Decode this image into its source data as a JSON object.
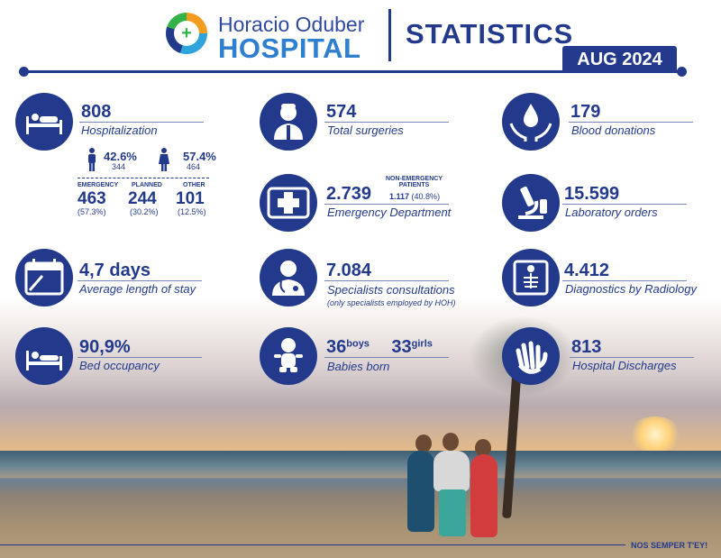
{
  "header": {
    "brand_line1": "Horacio Oduber",
    "brand_line2": "HOSPITAL",
    "title": "STATISTICS",
    "period": "AUG 2024"
  },
  "stats": {
    "hospitalization": {
      "value": "808",
      "label": "Hospitalization",
      "icon": "hospital-bed-icon",
      "male_pct": "42.6%",
      "male_count": "344",
      "female_pct": "57.4%",
      "female_count": "464",
      "emergency_label": "EMERGENCY",
      "emergency_value": "463",
      "emergency_pct": "(57.3%)",
      "planned_label": "PLANNED",
      "planned_value": "244",
      "planned_pct": "(30.2%)",
      "other_label": "OTHER",
      "other_value": "101",
      "other_pct": "(12.5%)"
    },
    "surgeries": {
      "value": "574",
      "label": "Total surgeries",
      "icon": "surgeon-icon"
    },
    "blood": {
      "value": "179",
      "label": "Blood donations",
      "icon": "blood-drop-hands-icon"
    },
    "emergency": {
      "value": "2.739",
      "label": "Emergency Department",
      "icon": "medical-cross-icon",
      "nonemergency_label_1": "NON-EMERGENCY",
      "nonemergency_label_2": "PATIENTS",
      "nonemergency_value": "1.117",
      "nonemergency_pct": "(40.8%)"
    },
    "laboratory": {
      "value": "15.599",
      "label": "Laboratory orders",
      "icon": "microscope-icon"
    },
    "stay": {
      "value": "4,7 days",
      "label": "Average length of stay",
      "icon": "calendar-icon"
    },
    "specialists": {
      "value": "7.084",
      "label": "Specialists consultations",
      "note": "(only specialists employed by HOH)",
      "icon": "doctor-icon"
    },
    "radiology": {
      "value": "4.412",
      "label": "Diagnostics by Radiology",
      "icon": "xray-icon"
    },
    "occupancy": {
      "value": "90,9%",
      "label": "Bed occupancy",
      "icon": "bed-icon"
    },
    "babies": {
      "boys_value": "36",
      "boys_label": "boys",
      "girls_value": "33",
      "girls_label": "girls",
      "label": "Babies born",
      "icon": "baby-icon"
    },
    "discharges": {
      "value": "813",
      "label": "Hospital Discharges",
      "icon": "waving-hand-icon"
    }
  },
  "footer": {
    "slogan": "NOS SEMPER T'EY!"
  },
  "colors": {
    "primary": "#233a8c",
    "accent_blue": "#2e7fd0"
  }
}
